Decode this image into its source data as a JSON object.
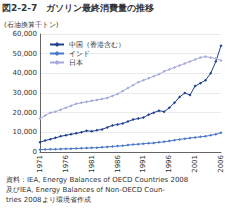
{
  "chart_data": {
    "type": "line",
    "title": "図2-2-7　ガソリン最終消費量の推移",
    "y_label": "(石油換算千トン)",
    "source": [
      "資料：IEA, Energy Balances of OECD Countries 2008",
      "及びIEA, Energy Balances of Non-OECD Coun-",
      "tries 2008より環境省作成"
    ],
    "categories": [
      "1971",
      null,
      null,
      null,
      null,
      "1976",
      null,
      null,
      null,
      null,
      "1981",
      null,
      null,
      null,
      null,
      "1986",
      null,
      null,
      null,
      null,
      "1991",
      null,
      null,
      null,
      null,
      "1996",
      null,
      null,
      null,
      null,
      "2001",
      null,
      null,
      null,
      null,
      "2006"
    ],
    "series": [
      {
        "name": "中国（香港含む）",
        "color": "#1f3f8f",
        "marker": "diamond",
        "values": [
          5000,
          5800,
          6500,
          7200,
          8000,
          8500,
          9000,
          9500,
          10000,
          10800,
          10500,
          11000,
          11500,
          12500,
          13500,
          14000,
          14500,
          15500,
          16500,
          17000,
          17500,
          19000,
          20000,
          21000,
          20500,
          22500,
          25000,
          28000,
          30000,
          29000,
          33500,
          35000,
          36500,
          40000,
          46000,
          54000
        ]
      },
      {
        "name": "インド",
        "color": "#4a78c8",
        "marker": "diamond",
        "values": [
          1200,
          1300,
          1400,
          1400,
          1500,
          1600,
          1700,
          1800,
          1900,
          2000,
          2100,
          2200,
          2400,
          2600,
          2800,
          3000,
          3200,
          3500,
          3800,
          4000,
          4200,
          4400,
          4600,
          4900,
          5200,
          5600,
          6000,
          6400,
          6800,
          7100,
          7400,
          7700,
          8000,
          8500,
          9000,
          9800
        ]
      },
      {
        "name": "日本",
        "color": "#a3a9d9",
        "marker": "diamond",
        "values": [
          17000,
          18500,
          20000,
          20500,
          21500,
          22500,
          23500,
          24500,
          25000,
          25500,
          26000,
          26500,
          27000,
          27500,
          28500,
          29500,
          31000,
          32500,
          34000,
          35500,
          36500,
          37500,
          38500,
          39500,
          41000,
          42000,
          43000,
          44000,
          45000,
          46000,
          47000,
          48000,
          48500,
          48000,
          47500,
          46500
        ]
      }
    ],
    "ylim": [
      0,
      60000
    ],
    "yticks": [
      0,
      {
        "value": 10000,
        "label": "10,000"
      },
      {
        "value": 20000,
        "label": "20,000"
      },
      {
        "value": 30000,
        "label": "30,000"
      },
      {
        "value": 40000,
        "label": "40,000"
      },
      {
        "value": 50000,
        "label": "50,000"
      },
      {
        "value": 60000,
        "label": "60,000"
      }
    ],
    "grid": true,
    "legend": "upper left"
  }
}
